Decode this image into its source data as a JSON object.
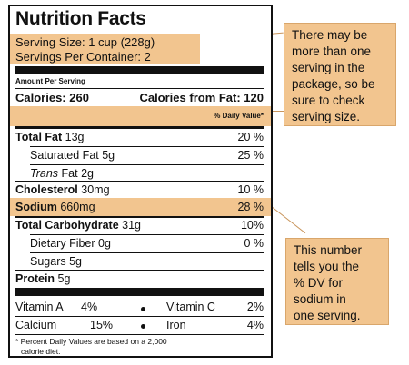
{
  "label": {
    "title": "Nutrition Facts",
    "serving_size": "Serving Size: 1 cup (228g)",
    "servings_per_container": "Servings Per Container: 2",
    "amount_per_serving": "Amount Per Serving",
    "calories": "Calories: 260",
    "calories_from_fat": "Calories from Fat: 120",
    "daily_value_header": "% Daily Value*",
    "rows": [
      {
        "name": "Total Fat",
        "amount": "13g",
        "dv": "20 %"
      },
      {
        "name": "Saturated Fat",
        "amount": "5g",
        "dv": "25 %"
      },
      {
        "name_italic": "Trans",
        "name": "Fat",
        "amount": "2g",
        "dv": ""
      },
      {
        "name": "Cholesterol",
        "amount": "30mg",
        "dv": "10 %"
      },
      {
        "name": "Sodium",
        "amount": "660mg",
        "dv": "28 %"
      },
      {
        "name": "Total Carbohydrate",
        "amount": "31g",
        "dv": "10%"
      },
      {
        "name": "Dietary Fiber",
        "amount": "0g",
        "dv": "0 %"
      },
      {
        "name": "Sugars",
        "amount": "5g",
        "dv": ""
      },
      {
        "name": "Protein",
        "amount": "5g",
        "dv": ""
      }
    ],
    "vitamins": {
      "vitamin_a": "Vitamin A",
      "vitamin_a_pct": "4%",
      "vitamin_c": "Vitamin C",
      "vitamin_c_pct": "2%",
      "calcium": "Calcium",
      "calcium_pct": "15%",
      "iron": "Iron",
      "iron_pct": "4%"
    },
    "footnote_line1": "* Percent Daily Values are based on a 2,000",
    "footnote_line2": "calorie diet."
  },
  "callouts": {
    "serving": [
      "There may be",
      "more than one",
      "serving in the",
      "package, so be",
      "sure to check",
      "serving size."
    ],
    "sodium": [
      "This number",
      "tells you the",
      "% DV for",
      "sodium in",
      "one serving."
    ]
  },
  "colors": {
    "highlight": "#f2c58f",
    "connector": "#c9955c"
  }
}
